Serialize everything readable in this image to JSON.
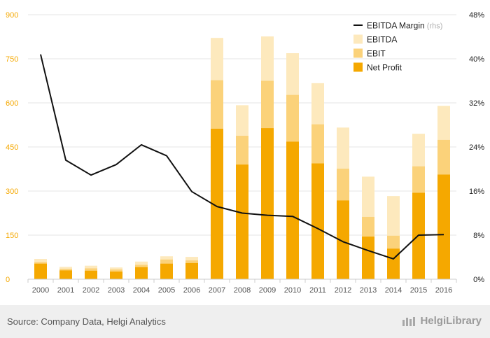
{
  "chart_data": {
    "type": "bar",
    "categories": [
      "2000",
      "2001",
      "2002",
      "2003",
      "2004",
      "2005",
      "2006",
      "2007",
      "2008",
      "2009",
      "2010",
      "2011",
      "2012",
      "2013",
      "2014",
      "2015",
      "2016"
    ],
    "series": [
      {
        "name": "Net Profit",
        "kind": "bar",
        "color": "#f5a800",
        "values": [
          53,
          30,
          29,
          26,
          41,
          53,
          55,
          512,
          390,
          514,
          468,
          394,
          268,
          145,
          104,
          294,
          356
        ]
      },
      {
        "name": "EBIT",
        "kind": "bar",
        "color": "#fbd27a",
        "values": [
          58,
          35,
          37,
          33,
          49,
          67,
          64,
          677,
          488,
          675,
          627,
          527,
          376,
          212,
          148,
          384,
          474
        ]
      },
      {
        "name": "EBITDA",
        "kind": "bar",
        "color": "#fde9bd",
        "values": [
          69,
          42,
          46,
          40,
          60,
          78,
          76,
          821,
          592,
          826,
          769,
          667,
          516,
          349,
          283,
          495,
          590
        ]
      },
      {
        "name": "EBITDA Margin",
        "name_suffix": "(rhs)",
        "kind": "line",
        "axis": "right",
        "color": "#111111",
        "values": [
          40.8,
          21.6,
          18.9,
          20.8,
          24.4,
          22.4,
          15.9,
          13.2,
          12.0,
          11.6,
          11.4,
          9.2,
          6.8,
          5.2,
          3.7,
          8.0,
          8.1
        ]
      }
    ],
    "y_left": {
      "ylim": [
        0,
        900
      ],
      "ticks": [
        "0",
        "150",
        "300",
        "450",
        "600",
        "750",
        "900"
      ]
    },
    "y_right": {
      "ylim": [
        0,
        48
      ],
      "ticks": [
        "0%",
        "8%",
        "16%",
        "24%",
        "32%",
        "40%",
        "48%"
      ]
    },
    "legend_position": "top-right",
    "colors": {
      "left_axis_text": "#f5a800",
      "right_axis_text": "#222222",
      "grid": "#e6e6e6",
      "axis_label": "#555555"
    }
  },
  "footer": {
    "source": "Source: Company Data, Helgi Analytics",
    "brand": "HelgiLibrary"
  }
}
